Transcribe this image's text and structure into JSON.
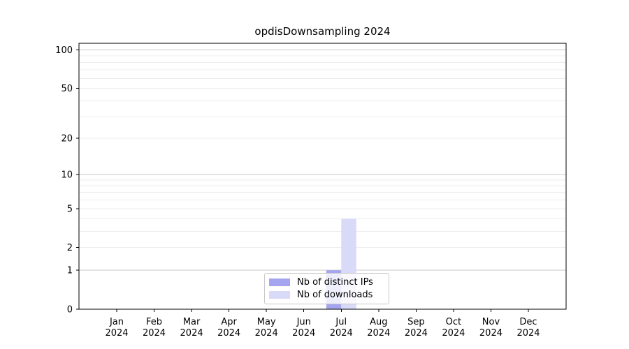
{
  "figure": {
    "title": "opdisDownsampling 2024"
  },
  "chart_data": {
    "type": "bar",
    "title": "opdisDownsampling 2024",
    "xlabel": "",
    "ylabel": "",
    "categories": [
      "Jan 2024",
      "Feb 2024",
      "Mar 2024",
      "Apr 2024",
      "May 2024",
      "Jun 2024",
      "Jul 2024",
      "Aug 2024",
      "Sep 2024",
      "Oct 2024",
      "Nov 2024",
      "Dec 2024"
    ],
    "series": [
      {
        "name": "Nb of distinct IPs",
        "color": "#a5a5ef",
        "values": [
          0,
          0,
          0,
          0,
          0,
          0,
          1,
          0,
          0,
          0,
          0,
          0
        ]
      },
      {
        "name": "Nb of downloads",
        "color": "#d9d9f8",
        "values": [
          0,
          0,
          0,
          0,
          0,
          0,
          4,
          0,
          0,
          0,
          0,
          0
        ]
      }
    ],
    "y_scale": "log1p",
    "ylim": [
      0,
      113
    ],
    "y_ticks": [
      0,
      1,
      2,
      5,
      10,
      20,
      50,
      100
    ],
    "y_gridlines_major": [
      1,
      10,
      100
    ],
    "y_gridlines_minor": [
      2,
      3,
      4,
      5,
      6,
      7,
      8,
      9,
      20,
      30,
      40,
      50,
      60,
      70,
      80,
      90
    ],
    "grid": true,
    "legend_position": "lower center",
    "colors": {
      "grid_major": "#c9c9c9",
      "grid_minor": "#ececec",
      "axis": "#000000",
      "background": "#ffffff"
    }
  },
  "legend": {
    "entries": [
      {
        "label": "Nb of distinct IPs"
      },
      {
        "label": "Nb of downloads"
      }
    ]
  }
}
